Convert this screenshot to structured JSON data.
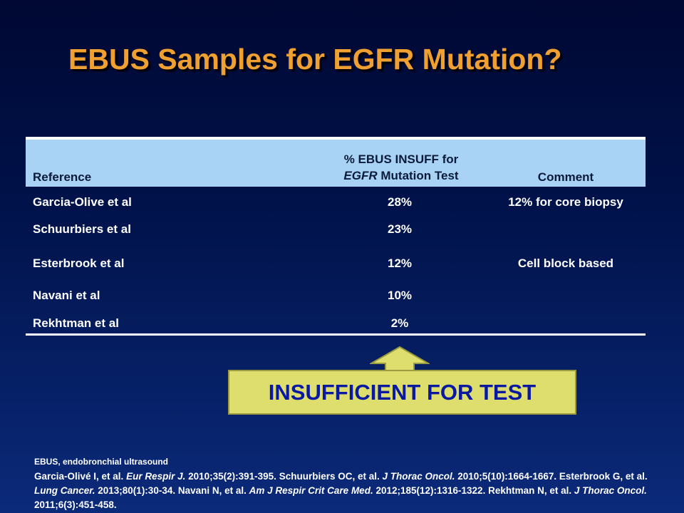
{
  "slide": {
    "title": "EBUS Samples for EGFR Mutation?"
  },
  "table": {
    "headers": {
      "reference": "Reference",
      "pct_line1": "% EBUS INSUFF for",
      "pct_line2_italic": "EGFR",
      "pct_line2_rest": " Mutation Test",
      "comment": "Comment"
    },
    "rows": [
      {
        "reference": "Garcia-Olive et al",
        "percent": "28%",
        "comment": "12% for core biopsy"
      },
      {
        "reference": "Schuurbiers et al",
        "percent": "23%",
        "comment": ""
      },
      {
        "reference": "Esterbrook et al",
        "percent": "12%",
        "comment": "Cell block based"
      },
      {
        "reference": "Navani et al",
        "percent": "10%",
        "comment": ""
      },
      {
        "reference": "Rekhtman et al",
        "percent": "2%",
        "comment": ""
      }
    ]
  },
  "callout": {
    "text": "INSUFFICIENT FOR TEST",
    "fill_color": "#dede6e",
    "text_color": "#0a1aa0"
  },
  "footnote": {
    "abbreviation": "EBUS, endobronchial ultrasound",
    "refs": [
      {
        "authors": "Garcia-Olivé I, et al. ",
        "journal": "Eur Respir J.",
        "citation": " 2010;35(2):391-395. "
      },
      {
        "authors": "Schuurbiers OC, et al. ",
        "journal": "J Thorac Oncol.",
        "citation": " 2010;5(10):1664-1667. "
      },
      {
        "authors": "Esterbrook G, et al. ",
        "journal": "Lung Cancer.",
        "citation": " 2013;80(1):30-34. "
      },
      {
        "authors": "Navani N, et al. ",
        "journal": "Am J Respir Crit Care Med.",
        "citation": " 2012;185(12):1316-1322. "
      },
      {
        "authors": "Rekhtman N, et al. ",
        "journal": "J Thorac Oncol.",
        "citation": " 2011;6(3):451-458."
      }
    ]
  },
  "colors": {
    "title": "#f0a030",
    "header_fill": "#a9d3f5",
    "background_top": "#000833",
    "background_bottom": "#0b2a7a"
  }
}
